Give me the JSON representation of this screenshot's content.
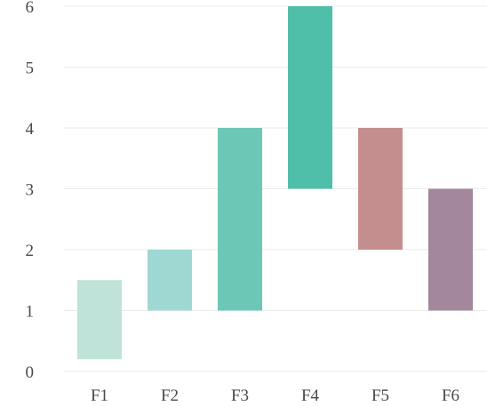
{
  "chart_data": {
    "type": "bar",
    "subtype": "floating",
    "title": "",
    "xlabel": "",
    "ylabel": "",
    "categories": [
      "F1",
      "F2",
      "F3",
      "F4",
      "F5",
      "F6"
    ],
    "ranges": [
      [
        0.2,
        1.5
      ],
      [
        1.0,
        2.0
      ],
      [
        1.0,
        4.0
      ],
      [
        3.0,
        6.0
      ],
      [
        2.0,
        4.0
      ],
      [
        1.0,
        3.0
      ]
    ],
    "colors": [
      "#bfe3d9",
      "#9fd8d3",
      "#6cc7b7",
      "#4fbfaa",
      "#c48e8f",
      "#a3879d"
    ],
    "y_ticks": [
      "0",
      "1",
      "2",
      "3",
      "4",
      "5",
      "6"
    ],
    "ylim": [
      0,
      6
    ],
    "grid": true
  }
}
